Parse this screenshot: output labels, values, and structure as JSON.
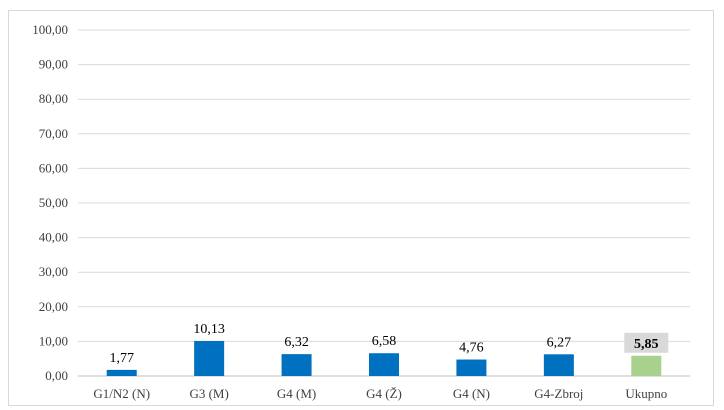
{
  "chart_data": {
    "type": "bar",
    "categories": [
      "G1/N2 (N)",
      "G3 (M)",
      "G4 (M)",
      "G4 (Ž)",
      "G4 (N)",
      "G4-Zbroj",
      "Ukupno"
    ],
    "values": [
      1.77,
      10.13,
      6.32,
      6.58,
      4.76,
      6.27,
      5.85
    ],
    "value_labels": [
      "1,77",
      "10,13",
      "6,32",
      "6,58",
      "4,76",
      "6,27",
      "5,85"
    ],
    "bar_colors": [
      "#0070c0",
      "#0070c0",
      "#0070c0",
      "#0070c0",
      "#0070c0",
      "#0070c0",
      "#a9d18e"
    ],
    "highlight_label_index": 6,
    "highlight_label_bg": "#d9d9d9",
    "ylim": [
      0,
      100
    ],
    "yticks": [
      0,
      10,
      20,
      30,
      40,
      50,
      60,
      70,
      80,
      90,
      100
    ],
    "ytick_labels": [
      "0,00",
      "10,00",
      "20,00",
      "30,00",
      "40,00",
      "50,00",
      "60,00",
      "70,00",
      "80,00",
      "90,00",
      "100,00"
    ],
    "grid": true,
    "gridline_color": "#d9d9d9",
    "title": "",
    "xlabel": "",
    "ylabel": ""
  }
}
